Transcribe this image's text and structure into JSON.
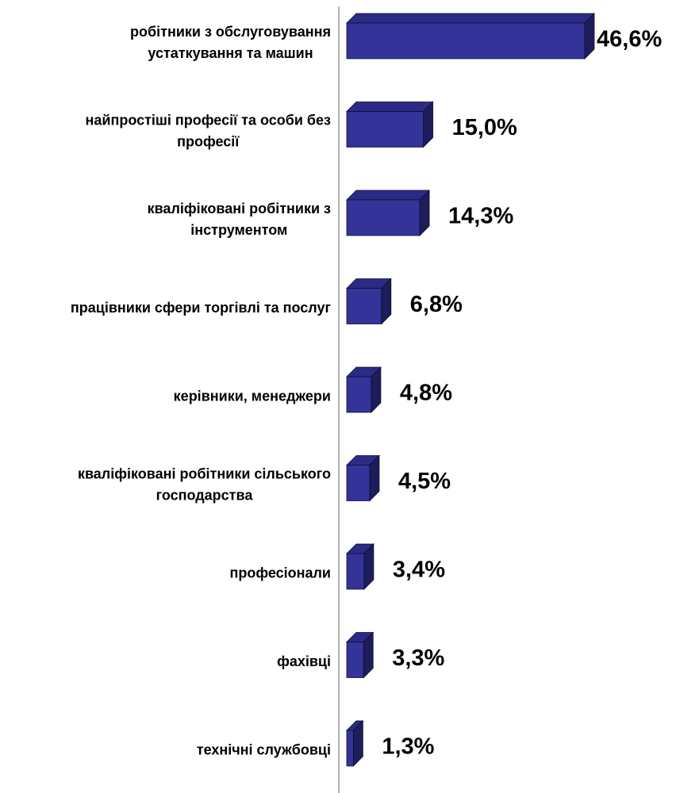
{
  "chart_data": {
    "type": "bar",
    "orientation": "horizontal",
    "bar_style": "3d",
    "categories": [
      "робітники з обслуговування устаткування та машин",
      "найпростіші професії та особи без професії",
      "кваліфіковані робітники з інструментом",
      "працівники сфери торгівлі та послуг",
      "керівники, менеджери",
      "кваліфіковані робітники сільського господарства",
      "професіонали",
      "фахівці",
      "технічні службовці"
    ],
    "category_lines": [
      [
        "робітники з обслуговування",
        "устаткування та машин"
      ],
      [
        "найпростіші професії та особи без",
        "професії"
      ],
      [
        "кваліфіковані робітники з",
        "інструментом"
      ],
      [
        "працівники сфери торгівлі та послуг"
      ],
      [
        "керівники, менеджери"
      ],
      [
        "кваліфіковані робітники сільського",
        "господарства"
      ],
      [
        "професіонали"
      ],
      [
        "фахівці"
      ],
      [
        "технічні службовці"
      ]
    ],
    "values": [
      46.6,
      15.0,
      14.3,
      6.8,
      4.8,
      4.5,
      3.4,
      3.3,
      1.3
    ],
    "value_labels": [
      "46,6%",
      "15,0%",
      "14,3%",
      "6,8%",
      "4,8%",
      "4,5%",
      "3,4%",
      "3,3%",
      "1,3%"
    ],
    "unit": "%",
    "xlim": [
      0,
      46.6
    ],
    "grid": false,
    "legend": "none",
    "colors": {
      "bar_front": "#33339a",
      "bar_top": "#2b2b86",
      "bar_side": "#1d1d5a",
      "bar_edge": "#0d0d33",
      "axis": "#808080"
    }
  }
}
